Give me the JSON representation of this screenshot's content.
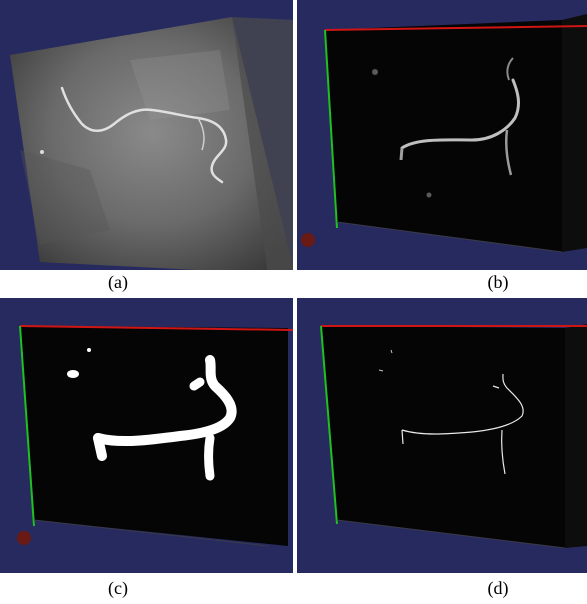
{
  "figure": {
    "colors": {
      "background": "#272a5e",
      "box_face": "#050505",
      "axis_x": "#d01515",
      "axis_y": "#20c020",
      "vessel": "#ffffff"
    },
    "panels": [
      {
        "id": "a",
        "caption": "(a)"
      },
      {
        "id": "b",
        "caption": "(b)"
      },
      {
        "id": "c",
        "caption": "(c)"
      },
      {
        "id": "d",
        "caption": "(d)"
      }
    ]
  }
}
